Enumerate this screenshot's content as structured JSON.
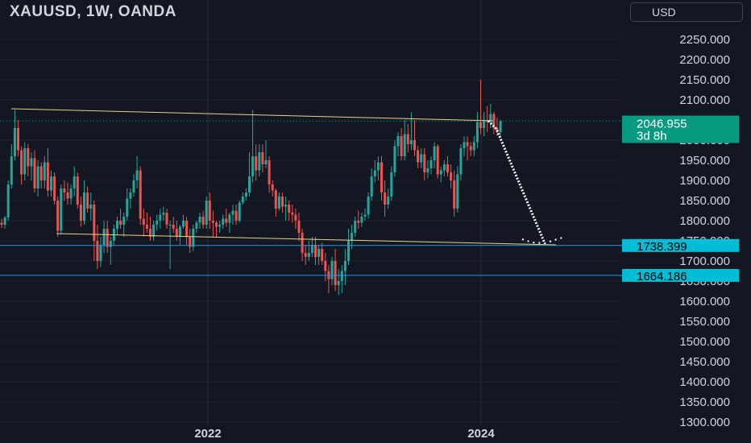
{
  "header": {
    "title": "XAUUSD, 1W, OANDA",
    "currency_button": "USD"
  },
  "chart_data": {
    "type": "candlestick",
    "title": "XAUUSD, 1W, OANDA",
    "ylim": [
      1280,
      2290
    ],
    "y_ticks": [
      "2250.000",
      "2200.000",
      "2150.000",
      "2100.000",
      "2050.000",
      "2000.000",
      "1950.000",
      "1900.000",
      "1850.000",
      "1800.000",
      "1750.000",
      "1700.000",
      "1650.000",
      "1600.000",
      "1550.000",
      "1500.000",
      "1450.000",
      "1400.000",
      "1350.000",
      "1300.000"
    ],
    "x_ticks": [
      "2022",
      "2024"
    ],
    "grid": true,
    "price_labels": [
      {
        "value": "2046.955",
        "sub": "3d 8h",
        "color": "#089981"
      },
      {
        "value": "1738.399",
        "color": "#00bcd4"
      },
      {
        "value": "1664.186",
        "color": "#00bcd4"
      }
    ],
    "horizontal_lines": [
      1738.399,
      1664.186
    ],
    "colors": {
      "up": "#26a69a",
      "down": "#ef5350",
      "trendline": "#e8d38a",
      "level": "#2196f3",
      "projection": "#ffffff"
    },
    "candles": [
      [
        1795,
        1805,
        1782,
        1790
      ],
      [
        1790,
        1812,
        1780,
        1808
      ],
      [
        1808,
        1900,
        1800,
        1890
      ],
      [
        1890,
        1990,
        1880,
        1960
      ],
      [
        1960,
        2075,
        1950,
        2030
      ],
      [
        2030,
        2050,
        1960,
        1975
      ],
      [
        1975,
        1985,
        1890,
        1915
      ],
      [
        1915,
        1995,
        1900,
        1980
      ],
      [
        1980,
        1990,
        1910,
        1935
      ],
      [
        1935,
        1970,
        1900,
        1955
      ],
      [
        1955,
        1975,
        1870,
        1880
      ],
      [
        1880,
        1950,
        1860,
        1935
      ],
      [
        1935,
        1945,
        1880,
        1900
      ],
      [
        1900,
        1960,
        1880,
        1945
      ],
      [
        1945,
        1980,
        1860,
        1875
      ],
      [
        1875,
        1925,
        1860,
        1910
      ],
      [
        1910,
        1920,
        1840,
        1850
      ],
      [
        1850,
        1860,
        1760,
        1775
      ],
      [
        1775,
        1890,
        1765,
        1880
      ],
      [
        1880,
        1900,
        1850,
        1870
      ],
      [
        1870,
        1895,
        1840,
        1855
      ],
      [
        1855,
        1890,
        1840,
        1880
      ],
      [
        1880,
        1935,
        1860,
        1910
      ],
      [
        1910,
        1920,
        1830,
        1840
      ],
      [
        1840,
        1860,
        1785,
        1800
      ],
      [
        1800,
        1900,
        1790,
        1870
      ],
      [
        1870,
        1885,
        1820,
        1830
      ],
      [
        1830,
        1870,
        1800,
        1840
      ],
      [
        1840,
        1850,
        1700,
        1750
      ],
      [
        1750,
        1790,
        1680,
        1700
      ],
      [
        1700,
        1760,
        1685,
        1740
      ],
      [
        1740,
        1800,
        1720,
        1780
      ],
      [
        1780,
        1800,
        1720,
        1735
      ],
      [
        1735,
        1760,
        1690,
        1750
      ],
      [
        1750,
        1790,
        1740,
        1780
      ],
      [
        1780,
        1810,
        1765,
        1800
      ],
      [
        1800,
        1830,
        1780,
        1790
      ],
      [
        1790,
        1820,
        1760,
        1810
      ],
      [
        1810,
        1880,
        1800,
        1855
      ],
      [
        1855,
        1880,
        1830,
        1870
      ],
      [
        1870,
        1915,
        1860,
        1900
      ],
      [
        1900,
        1960,
        1880,
        1925
      ],
      [
        1925,
        1935,
        1790,
        1805
      ],
      [
        1805,
        1830,
        1760,
        1790
      ],
      [
        1790,
        1820,
        1770,
        1780
      ],
      [
        1780,
        1810,
        1750,
        1760
      ],
      [
        1760,
        1800,
        1750,
        1790
      ],
      [
        1790,
        1815,
        1775,
        1800
      ],
      [
        1800,
        1830,
        1780,
        1815
      ],
      [
        1815,
        1835,
        1800,
        1820
      ],
      [
        1820,
        1830,
        1780,
        1790
      ],
      [
        1790,
        1800,
        1680,
        1790
      ],
      [
        1790,
        1810,
        1770,
        1780
      ],
      [
        1780,
        1800,
        1750,
        1760
      ],
      [
        1760,
        1790,
        1740,
        1785
      ],
      [
        1785,
        1815,
        1780,
        1800
      ],
      [
        1800,
        1810,
        1740,
        1760
      ],
      [
        1760,
        1780,
        1720,
        1735
      ],
      [
        1735,
        1790,
        1725,
        1780
      ],
      [
        1780,
        1800,
        1770,
        1795
      ],
      [
        1795,
        1820,
        1780,
        1810
      ],
      [
        1810,
        1825,
        1780,
        1790
      ],
      [
        1790,
        1860,
        1780,
        1850
      ],
      [
        1850,
        1870,
        1780,
        1800
      ],
      [
        1800,
        1825,
        1760,
        1795
      ],
      [
        1795,
        1800,
        1760,
        1785
      ],
      [
        1785,
        1800,
        1770,
        1790
      ],
      [
        1790,
        1815,
        1780,
        1805
      ],
      [
        1805,
        1830,
        1785,
        1795
      ],
      [
        1795,
        1820,
        1770,
        1815
      ],
      [
        1815,
        1840,
        1790,
        1825
      ],
      [
        1825,
        1840,
        1790,
        1800
      ],
      [
        1800,
        1850,
        1795,
        1845
      ],
      [
        1845,
        1870,
        1840,
        1860
      ],
      [
        1860,
        1880,
        1850,
        1870
      ],
      [
        1870,
        1970,
        1860,
        1910
      ],
      [
        1910,
        2075,
        1895,
        1960
      ],
      [
        1960,
        1990,
        1900,
        1925
      ],
      [
        1925,
        1990,
        1910,
        1970
      ],
      [
        1970,
        1990,
        1920,
        1940
      ],
      [
        1940,
        2000,
        1930,
        1950
      ],
      [
        1950,
        1960,
        1870,
        1890
      ],
      [
        1890,
        1900,
        1860,
        1875
      ],
      [
        1875,
        1880,
        1810,
        1830
      ],
      [
        1830,
        1870,
        1825,
        1860
      ],
      [
        1860,
        1870,
        1820,
        1835
      ],
      [
        1835,
        1860,
        1800,
        1840
      ],
      [
        1840,
        1850,
        1800,
        1820
      ],
      [
        1820,
        1840,
        1795,
        1815
      ],
      [
        1815,
        1830,
        1780,
        1800
      ],
      [
        1800,
        1820,
        1750,
        1770
      ],
      [
        1770,
        1780,
        1700,
        1720
      ],
      [
        1720,
        1740,
        1690,
        1710
      ],
      [
        1710,
        1750,
        1700,
        1720
      ],
      [
        1720,
        1760,
        1710,
        1740
      ],
      [
        1740,
        1760,
        1690,
        1710
      ],
      [
        1710,
        1740,
        1690,
        1730
      ],
      [
        1730,
        1745,
        1690,
        1700
      ],
      [
        1700,
        1720,
        1650,
        1675
      ],
      [
        1675,
        1690,
        1620,
        1655
      ],
      [
        1655,
        1710,
        1640,
        1700
      ],
      [
        1700,
        1730,
        1625,
        1640
      ],
      [
        1640,
        1680,
        1615,
        1650
      ],
      [
        1650,
        1690,
        1620,
        1675
      ],
      [
        1675,
        1730,
        1640,
        1700
      ],
      [
        1700,
        1780,
        1690,
        1750
      ],
      [
        1750,
        1790,
        1730,
        1770
      ],
      [
        1770,
        1810,
        1760,
        1800
      ],
      [
        1800,
        1825,
        1780,
        1795
      ],
      [
        1795,
        1820,
        1785,
        1810
      ],
      [
        1810,
        1830,
        1800,
        1815
      ],
      [
        1815,
        1870,
        1805,
        1860
      ],
      [
        1860,
        1930,
        1850,
        1910
      ],
      [
        1910,
        1950,
        1895,
        1925
      ],
      [
        1925,
        1960,
        1900,
        1945
      ],
      [
        1945,
        1960,
        1850,
        1870
      ],
      [
        1870,
        1900,
        1810,
        1840
      ],
      [
        1840,
        1880,
        1830,
        1860
      ],
      [
        1860,
        1935,
        1850,
        1920
      ],
      [
        1920,
        2000,
        1910,
        1985
      ],
      [
        1985,
        2020,
        1960,
        2010
      ],
      [
        2010,
        2030,
        1950,
        1960
      ],
      [
        1960,
        2050,
        1950,
        2015
      ],
      [
        2015,
        2040,
        1970,
        1990
      ],
      [
        1990,
        2070,
        1975,
        2000
      ],
      [
        2000,
        2050,
        1960,
        1975
      ],
      [
        1975,
        1985,
        1930,
        1945
      ],
      [
        1945,
        1980,
        1930,
        1965
      ],
      [
        1965,
        1980,
        1900,
        1920
      ],
      [
        1920,
        1950,
        1905,
        1930
      ],
      [
        1930,
        1960,
        1915,
        1950
      ],
      [
        1950,
        1995,
        1930,
        1985
      ],
      [
        1985,
        1990,
        1905,
        1915
      ],
      [
        1915,
        1935,
        1895,
        1925
      ],
      [
        1925,
        1950,
        1910,
        1940
      ],
      [
        1940,
        1960,
        1910,
        1920
      ],
      [
        1920,
        1940,
        1880,
        1900
      ],
      [
        1900,
        1925,
        1810,
        1830
      ],
      [
        1830,
        1935,
        1820,
        1915
      ],
      [
        1915,
        1990,
        1900,
        1980
      ],
      [
        1980,
        2010,
        1960,
        1995
      ],
      [
        1995,
        2010,
        1950,
        1985
      ],
      [
        1985,
        1995,
        1960,
        1975
      ],
      [
        1975,
        2010,
        1960,
        1995
      ],
      [
        1995,
        2070,
        1980,
        2045
      ],
      [
        2045,
        2150,
        2015,
        2030
      ],
      [
        2030,
        2070,
        2010,
        2050
      ],
      [
        2050,
        2085,
        2020,
        2045
      ],
      [
        2045,
        2090,
        2030,
        2065
      ],
      [
        2065,
        2070,
        2015,
        2030
      ],
      [
        2030,
        2055,
        2010,
        2020
      ],
      [
        2020,
        2050,
        2010,
        2046.955
      ]
    ]
  }
}
